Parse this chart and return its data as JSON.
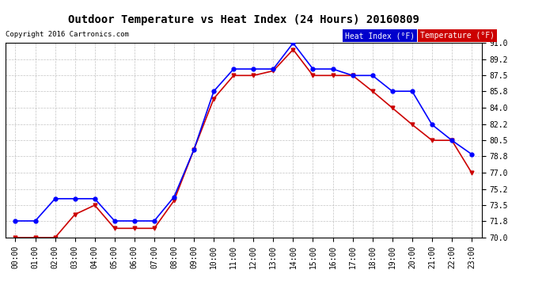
{
  "title": "Outdoor Temperature vs Heat Index (24 Hours) 20160809",
  "copyright": "Copyright 2016 Cartronics.com",
  "hours": [
    "00:00",
    "01:00",
    "02:00",
    "03:00",
    "04:00",
    "05:00",
    "06:00",
    "07:00",
    "08:00",
    "09:00",
    "10:00",
    "11:00",
    "12:00",
    "13:00",
    "14:00",
    "15:00",
    "16:00",
    "17:00",
    "18:00",
    "19:00",
    "20:00",
    "21:00",
    "22:00",
    "23:00"
  ],
  "heat_index": [
    71.8,
    71.8,
    74.2,
    74.2,
    74.2,
    71.8,
    71.8,
    71.8,
    74.4,
    79.5,
    85.8,
    88.2,
    88.2,
    88.2,
    91.0,
    88.2,
    88.2,
    87.5,
    87.5,
    85.8,
    85.8,
    82.2,
    80.5,
    79.0
  ],
  "temperature": [
    70.0,
    70.0,
    70.0,
    72.5,
    73.5,
    71.0,
    71.0,
    71.0,
    74.0,
    79.5,
    85.0,
    87.5,
    87.5,
    88.0,
    90.3,
    87.5,
    87.5,
    87.5,
    85.8,
    84.0,
    82.2,
    80.5,
    80.5,
    77.0
  ],
  "ylim": [
    70.0,
    91.0
  ],
  "yticks": [
    70.0,
    71.8,
    73.5,
    75.2,
    77.0,
    78.8,
    80.5,
    82.2,
    84.0,
    85.8,
    87.5,
    89.2,
    91.0
  ],
  "heat_index_color": "#0000ff",
  "temperature_color": "#cc0000",
  "background_color": "#ffffff",
  "grid_color": "#aaaaaa",
  "legend_heat_bg": "#0000cc",
  "legend_temp_bg": "#cc0000",
  "legend_heat_label": "Heat Index (°F)",
  "legend_temp_label": "Temperature (°F)"
}
